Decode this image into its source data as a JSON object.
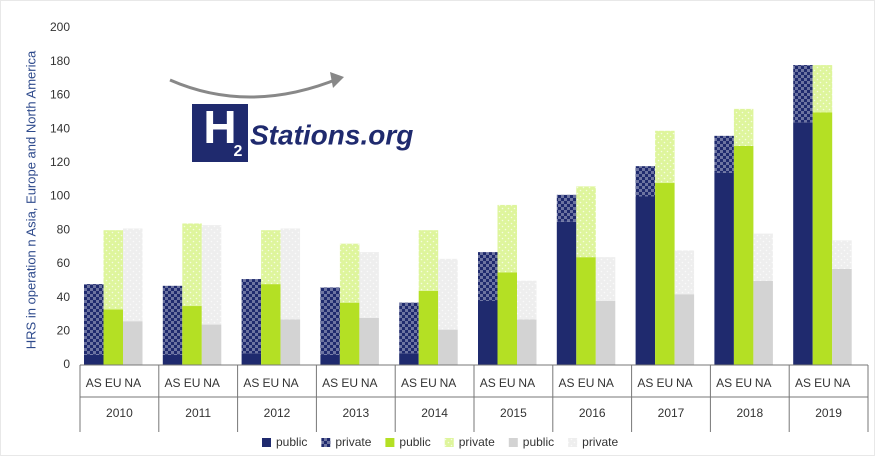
{
  "chart_data": {
    "type": "grouped_stacked_bar",
    "y_label": "HRS in operation n Asia, Europe and North America",
    "categories": [
      "2010",
      "2011",
      "2012",
      "2013",
      "2014",
      "2015",
      "2016",
      "2017",
      "2018",
      "2019"
    ],
    "groups": [
      "AS",
      "EU",
      "NA"
    ],
    "series": [
      {
        "name": "public",
        "group": "AS",
        "color": "#1f2a6e",
        "pattern": "solid",
        "values": [
          6,
          6,
          7,
          6,
          7,
          38,
          85,
          100,
          114,
          144
        ]
      },
      {
        "name": "private",
        "group": "AS",
        "color": "#1f2a6e",
        "pattern": "checker",
        "values": [
          42,
          41,
          44,
          40,
          30,
          29,
          16,
          18,
          22,
          34
        ]
      },
      {
        "name": "public",
        "group": "EU",
        "color": "#b4e024",
        "pattern": "solid",
        "values": [
          33,
          35,
          48,
          37,
          44,
          55,
          64,
          108,
          130,
          150
        ]
      },
      {
        "name": "private",
        "group": "EU",
        "color": "#def59c",
        "pattern": "dots",
        "values": [
          47,
          49,
          32,
          35,
          36,
          40,
          42,
          31,
          22,
          28
        ]
      },
      {
        "name": "public",
        "group": "NA",
        "color": "#d3d3d3",
        "pattern": "solid",
        "values": [
          26,
          24,
          27,
          28,
          21,
          27,
          38,
          42,
          50,
          57
        ]
      },
      {
        "name": "private",
        "group": "NA",
        "color": "#eeeeee",
        "pattern": "dots",
        "values": [
          55,
          59,
          54,
          39,
          42,
          23,
          26,
          26,
          28,
          17
        ]
      }
    ],
    "ylim": [
      0,
      200
    ],
    "yticks": [
      0,
      20,
      40,
      60,
      80,
      100,
      120,
      140,
      160,
      180,
      200
    ],
    "grid": false,
    "legend": "bottom"
  },
  "logo": {
    "letter": "H",
    "sub": "2",
    "text": "Stations.org"
  }
}
